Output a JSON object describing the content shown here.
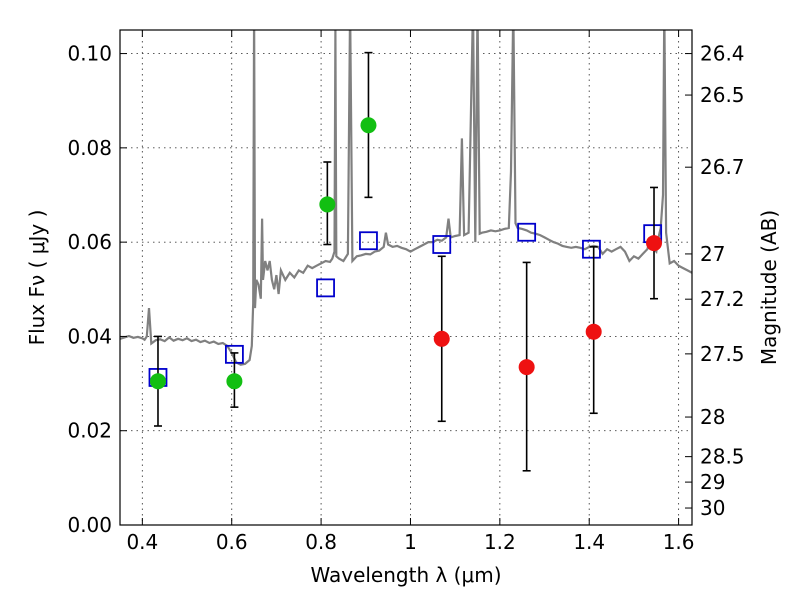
{
  "chart_data": {
    "type": "scatter",
    "xlabel": "Wavelength  λ (μm)",
    "ylabel": "Flux  Fν  ( μJy )",
    "y2label": "Magnitude (AB)",
    "xlim": [
      0.35,
      1.63
    ],
    "ylim": [
      0.0,
      0.105
    ],
    "grid": true,
    "x_ticks": [
      0.4,
      0.6,
      0.8,
      1.0,
      1.2,
      1.4,
      1.6
    ],
    "x_tick_labels": [
      "0.4",
      "0.6",
      "0.8",
      "1",
      "1.2",
      "1.4",
      "1.6"
    ],
    "y_ticks": [
      0.0,
      0.02,
      0.04,
      0.06,
      0.08,
      0.1
    ],
    "y_tick_labels": [
      "0.00",
      "0.02",
      "0.04",
      "0.06",
      "0.08",
      "0.10"
    ],
    "y2_ticks": [
      {
        "label": "26.4",
        "flux": 0.1
      },
      {
        "label": "26.5",
        "flux": 0.0912
      },
      {
        "label": "26.7",
        "flux": 0.0759
      },
      {
        "label": "27",
        "flux": 0.0575
      },
      {
        "label": "27.2",
        "flux": 0.0479
      },
      {
        "label": "27.5",
        "flux": 0.0363
      },
      {
        "label": "28",
        "flux": 0.0229
      },
      {
        "label": "28.5",
        "flux": 0.0145
      },
      {
        "label": "29",
        "flux": 0.0091
      },
      {
        "label": "30",
        "flux": 0.0036
      }
    ],
    "colors": {
      "model": "#808080",
      "green": "#12bf12",
      "red": "#ee1111",
      "box": "#0000cc",
      "errorbar": "#000000"
    },
    "series": [
      {
        "marker": "circle",
        "color": "green",
        "points": [
          {
            "x": 0.435,
            "y": 0.0305,
            "lo": 0.021,
            "hi": 0.04
          },
          {
            "x": 0.606,
            "y": 0.0305,
            "lo": 0.025,
            "hi": 0.0365
          },
          {
            "x": 0.814,
            "y": 0.068,
            "lo": 0.0595,
            "hi": 0.077
          },
          {
            "x": 0.906,
            "y": 0.0848,
            "lo": 0.0695,
            "hi": 0.1002
          }
        ]
      },
      {
        "marker": "circle",
        "color": "red",
        "points": [
          {
            "x": 1.07,
            "y": 0.0395,
            "lo": 0.022,
            "hi": 0.057
          },
          {
            "x": 1.26,
            "y": 0.0335,
            "lo": 0.0115,
            "hi": 0.0557
          },
          {
            "x": 1.41,
            "y": 0.041,
            "lo": 0.0237,
            "hi": 0.059
          },
          {
            "x": 1.545,
            "y": 0.0598,
            "lo": 0.048,
            "hi": 0.0716
          }
        ]
      },
      {
        "marker": "square",
        "color": "box",
        "points": [
          {
            "x": 0.435,
            "y": 0.0313
          },
          {
            "x": 0.606,
            "y": 0.0362
          },
          {
            "x": 0.81,
            "y": 0.0503
          },
          {
            "x": 0.906,
            "y": 0.0603
          },
          {
            "x": 1.07,
            "y": 0.0595
          },
          {
            "x": 1.26,
            "y": 0.0621
          },
          {
            "x": 1.405,
            "y": 0.0585
          },
          {
            "x": 1.542,
            "y": 0.0618
          }
        ]
      }
    ],
    "model_spectrum": [
      [
        0.35,
        0.0395
      ],
      [
        0.36,
        0.0398
      ],
      [
        0.37,
        0.0401
      ],
      [
        0.38,
        0.0397
      ],
      [
        0.39,
        0.0399
      ],
      [
        0.4,
        0.0396
      ],
      [
        0.405,
        0.0393
      ],
      [
        0.41,
        0.04
      ],
      [
        0.415,
        0.046
      ],
      [
        0.42,
        0.0385
      ],
      [
        0.43,
        0.0392
      ],
      [
        0.44,
        0.0394
      ],
      [
        0.45,
        0.039
      ],
      [
        0.46,
        0.0398
      ],
      [
        0.47,
        0.0391
      ],
      [
        0.48,
        0.0395
      ],
      [
        0.49,
        0.0392
      ],
      [
        0.5,
        0.0396
      ],
      [
        0.51,
        0.039
      ],
      [
        0.52,
        0.0393
      ],
      [
        0.53,
        0.0388
      ],
      [
        0.54,
        0.0391
      ],
      [
        0.55,
        0.0386
      ],
      [
        0.56,
        0.0389
      ],
      [
        0.57,
        0.0384
      ],
      [
        0.58,
        0.0386
      ],
      [
        0.59,
        0.038
      ],
      [
        0.6,
        0.0365
      ],
      [
        0.61,
        0.0345
      ],
      [
        0.62,
        0.034
      ],
      [
        0.63,
        0.0342
      ],
      [
        0.64,
        0.035
      ],
      [
        0.645,
        0.038
      ],
      [
        0.648,
        0.047
      ],
      [
        0.65,
        0.11
      ],
      [
        0.652,
        0.046
      ],
      [
        0.655,
        0.052
      ],
      [
        0.66,
        0.051
      ],
      [
        0.665,
        0.048
      ],
      [
        0.668,
        0.065
      ],
      [
        0.67,
        0.052
      ],
      [
        0.675,
        0.056
      ],
      [
        0.68,
        0.054
      ],
      [
        0.685,
        0.056
      ],
      [
        0.69,
        0.052
      ],
      [
        0.695,
        0.05
      ],
      [
        0.7,
        0.053
      ],
      [
        0.705,
        0.049
      ],
      [
        0.71,
        0.054
      ],
      [
        0.72,
        0.052
      ],
      [
        0.73,
        0.0535
      ],
      [
        0.74,
        0.0525
      ],
      [
        0.75,
        0.054
      ],
      [
        0.76,
        0.0535
      ],
      [
        0.77,
        0.055
      ],
      [
        0.78,
        0.0545
      ],
      [
        0.79,
        0.055
      ],
      [
        0.8,
        0.0555
      ],
      [
        0.81,
        0.056
      ],
      [
        0.82,
        0.0558
      ],
      [
        0.825,
        0.0565
      ],
      [
        0.83,
        0.058
      ],
      [
        0.832,
        0.105
      ],
      [
        0.834,
        0.057
      ],
      [
        0.84,
        0.0565
      ],
      [
        0.85,
        0.056
      ],
      [
        0.86,
        0.0575
      ],
      [
        0.865,
        0.11
      ],
      [
        0.87,
        0.056
      ],
      [
        0.88,
        0.057
      ],
      [
        0.89,
        0.0572
      ],
      [
        0.9,
        0.0575
      ],
      [
        0.91,
        0.0574
      ],
      [
        0.92,
        0.058
      ],
      [
        0.93,
        0.0582
      ],
      [
        0.94,
        0.059
      ],
      [
        0.945,
        0.062
      ],
      [
        0.95,
        0.0595
      ],
      [
        0.96,
        0.059
      ],
      [
        0.97,
        0.0592
      ],
      [
        0.98,
        0.0588
      ],
      [
        0.99,
        0.0585
      ],
      [
        1.0,
        0.058
      ],
      [
        1.01,
        0.0585
      ],
      [
        1.02,
        0.059
      ],
      [
        1.03,
        0.0595
      ],
      [
        1.04,
        0.06
      ],
      [
        1.05,
        0.06
      ],
      [
        1.06,
        0.0605
      ],
      [
        1.07,
        0.0603
      ],
      [
        1.08,
        0.061
      ],
      [
        1.085,
        0.065
      ],
      [
        1.09,
        0.061
      ],
      [
        1.1,
        0.0613
      ],
      [
        1.11,
        0.0615
      ],
      [
        1.115,
        0.082
      ],
      [
        1.12,
        0.0615
      ],
      [
        1.13,
        0.062
      ],
      [
        1.14,
        0.11
      ],
      [
        1.145,
        0.06
      ],
      [
        1.15,
        0.11
      ],
      [
        1.155,
        0.0618
      ],
      [
        1.16,
        0.062
      ],
      [
        1.17,
        0.0622
      ],
      [
        1.18,
        0.0625
      ],
      [
        1.19,
        0.0623
      ],
      [
        1.2,
        0.0625
      ],
      [
        1.21,
        0.0628
      ],
      [
        1.22,
        0.063
      ],
      [
        1.225,
        0.075
      ],
      [
        1.23,
        0.11
      ],
      [
        1.235,
        0.064
      ],
      [
        1.24,
        0.063
      ],
      [
        1.25,
        0.0628
      ],
      [
        1.26,
        0.0625
      ],
      [
        1.27,
        0.062
      ],
      [
        1.28,
        0.0618
      ],
      [
        1.29,
        0.0615
      ],
      [
        1.3,
        0.061
      ],
      [
        1.31,
        0.0605
      ],
      [
        1.32,
        0.06
      ],
      [
        1.33,
        0.0597
      ],
      [
        1.34,
        0.0592
      ],
      [
        1.35,
        0.059
      ],
      [
        1.36,
        0.0588
      ],
      [
        1.37,
        0.059
      ],
      [
        1.38,
        0.0588
      ],
      [
        1.39,
        0.0585
      ],
      [
        1.4,
        0.059
      ],
      [
        1.41,
        0.0592
      ],
      [
        1.42,
        0.059
      ],
      [
        1.43,
        0.0575
      ],
      [
        1.44,
        0.0585
      ],
      [
        1.45,
        0.058
      ],
      [
        1.46,
        0.0585
      ],
      [
        1.47,
        0.059
      ],
      [
        1.48,
        0.058
      ],
      [
        1.49,
        0.056
      ],
      [
        1.5,
        0.057
      ],
      [
        1.51,
        0.0565
      ],
      [
        1.52,
        0.0575
      ],
      [
        1.53,
        0.0585
      ],
      [
        1.535,
        0.06
      ],
      [
        1.54,
        0.059
      ],
      [
        1.55,
        0.058
      ],
      [
        1.555,
        0.061
      ],
      [
        1.56,
        0.063
      ],
      [
        1.565,
        0.07
      ],
      [
        1.568,
        0.11
      ],
      [
        1.572,
        0.062
      ],
      [
        1.58,
        0.0555
      ],
      [
        1.59,
        0.056
      ],
      [
        1.6,
        0.055
      ],
      [
        1.61,
        0.0545
      ],
      [
        1.62,
        0.054
      ],
      [
        1.63,
        0.0535
      ]
    ]
  }
}
